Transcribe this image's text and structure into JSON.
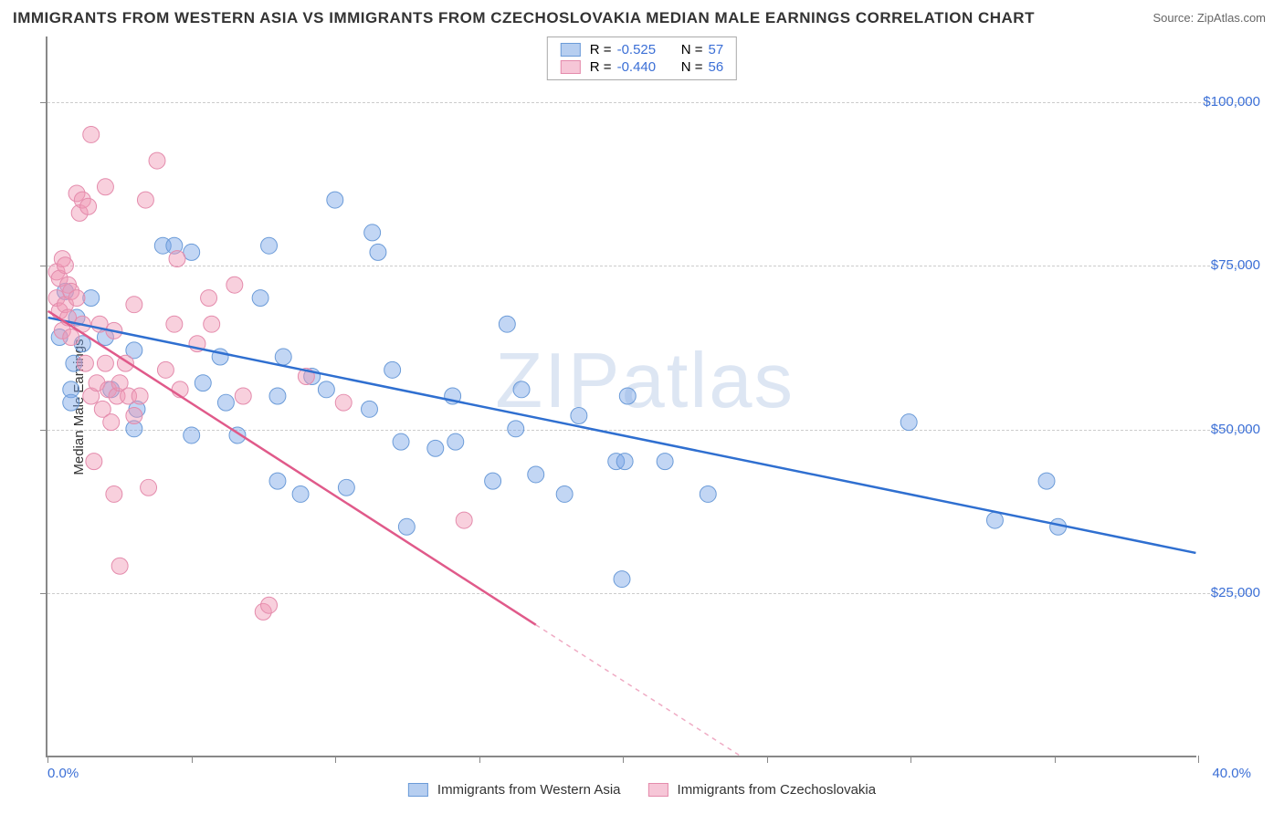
{
  "title": "IMMIGRANTS FROM WESTERN ASIA VS IMMIGRANTS FROM CZECHOSLOVAKIA MEDIAN MALE EARNINGS CORRELATION CHART",
  "source": "Source: ZipAtlas.com",
  "watermark": "ZIPatlas",
  "chart": {
    "type": "scatter",
    "ylabel": "Median Male Earnings",
    "xlim": [
      0,
      40
    ],
    "ylim": [
      0,
      110000
    ],
    "y_ticks": [
      25000,
      50000,
      75000,
      100000
    ],
    "y_tick_labels": [
      "$25,000",
      "$50,000",
      "$75,000",
      "$100,000"
    ],
    "x_ticks": [
      0,
      5,
      10,
      15,
      20,
      25,
      30,
      35,
      40
    ],
    "x_start_label": "0.0%",
    "x_end_label": "40.0%",
    "background_color": "#ffffff",
    "grid_color": "#cccccc",
    "axis_color": "#888888",
    "tick_label_color": "#3b6fd6",
    "series": [
      {
        "name": "Immigrants from Western Asia",
        "color_fill": "rgba(120,165,230,0.45)",
        "color_stroke": "#6b9bd8",
        "swatch_fill": "#b6cef0",
        "swatch_border": "#6b9bd8",
        "line_color": "#2f6fd0",
        "R": "-0.525",
        "N": "57",
        "trend": {
          "x1": 0,
          "y1": 67000,
          "x2": 40,
          "y2": 31000
        },
        "points": [
          [
            0.4,
            64000
          ],
          [
            0.6,
            71000
          ],
          [
            0.8,
            56000
          ],
          [
            0.8,
            54000
          ],
          [
            1.0,
            67000
          ],
          [
            1.2,
            63000
          ],
          [
            0.9,
            60000
          ],
          [
            1.5,
            70000
          ],
          [
            2.0,
            64000
          ],
          [
            2.2,
            56000
          ],
          [
            3.0,
            62000
          ],
          [
            3.1,
            53000
          ],
          [
            3.0,
            50000
          ],
          [
            4.0,
            78000
          ],
          [
            4.4,
            78000
          ],
          [
            5.0,
            77000
          ],
          [
            5.0,
            49000
          ],
          [
            5.4,
            57000
          ],
          [
            6.0,
            61000
          ],
          [
            6.2,
            54000
          ],
          [
            6.6,
            49000
          ],
          [
            7.4,
            70000
          ],
          [
            7.7,
            78000
          ],
          [
            8.0,
            42000
          ],
          [
            8.0,
            55000
          ],
          [
            8.2,
            61000
          ],
          [
            8.8,
            40000
          ],
          [
            9.2,
            58000
          ],
          [
            9.7,
            56000
          ],
          [
            10.0,
            85000
          ],
          [
            10.4,
            41000
          ],
          [
            11.2,
            53000
          ],
          [
            11.3,
            80000
          ],
          [
            11.5,
            77000
          ],
          [
            12.0,
            59000
          ],
          [
            12.3,
            48000
          ],
          [
            12.5,
            35000
          ],
          [
            13.5,
            47000
          ],
          [
            14.1,
            55000
          ],
          [
            14.2,
            48000
          ],
          [
            15.5,
            42000
          ],
          [
            16.0,
            66000
          ],
          [
            16.3,
            50000
          ],
          [
            16.5,
            56000
          ],
          [
            17.0,
            43000
          ],
          [
            18.0,
            40000
          ],
          [
            18.5,
            52000
          ],
          [
            19.8,
            45000
          ],
          [
            20.0,
            27000
          ],
          [
            20.1,
            45000
          ],
          [
            20.2,
            55000
          ],
          [
            21.5,
            45000
          ],
          [
            23.0,
            40000
          ],
          [
            30.0,
            51000
          ],
          [
            33.0,
            36000
          ],
          [
            34.8,
            42000
          ],
          [
            35.2,
            35000
          ]
        ]
      },
      {
        "name": "Immigrants from Czechoslovakia",
        "color_fill": "rgba(240,150,180,0.45)",
        "color_stroke": "#e48bac",
        "swatch_fill": "#f6c6d7",
        "swatch_border": "#e48bac",
        "line_color": "#e05a8a",
        "R": "-0.440",
        "N": "56",
        "trend": {
          "x1": 0,
          "y1": 68000,
          "x2": 17,
          "y2": 20000
        },
        "trend_extend": {
          "x1": 17,
          "y1": 20000,
          "x2": 25,
          "y2": -2500
        },
        "points": [
          [
            0.3,
            70000
          ],
          [
            0.3,
            74000
          ],
          [
            0.4,
            68000
          ],
          [
            0.4,
            73000
          ],
          [
            0.5,
            65000
          ],
          [
            0.5,
            76000
          ],
          [
            0.6,
            69000
          ],
          [
            0.6,
            75000
          ],
          [
            0.7,
            67000
          ],
          [
            0.7,
            72000
          ],
          [
            0.8,
            64000
          ],
          [
            0.8,
            71000
          ],
          [
            1.0,
            70000
          ],
          [
            1.0,
            86000
          ],
          [
            1.1,
            83000
          ],
          [
            1.2,
            66000
          ],
          [
            1.2,
            85000
          ],
          [
            1.3,
            60000
          ],
          [
            1.4,
            84000
          ],
          [
            1.5,
            95000
          ],
          [
            1.5,
            55000
          ],
          [
            1.6,
            45000
          ],
          [
            1.7,
            57000
          ],
          [
            1.8,
            66000
          ],
          [
            1.9,
            53000
          ],
          [
            2.0,
            60000
          ],
          [
            2.0,
            87000
          ],
          [
            2.1,
            56000
          ],
          [
            2.2,
            51000
          ],
          [
            2.3,
            65000
          ],
          [
            2.3,
            40000
          ],
          [
            2.4,
            55000
          ],
          [
            2.5,
            29000
          ],
          [
            2.5,
            57000
          ],
          [
            2.7,
            60000
          ],
          [
            2.8,
            55000
          ],
          [
            3.0,
            52000
          ],
          [
            3.0,
            69000
          ],
          [
            3.2,
            55000
          ],
          [
            3.4,
            85000
          ],
          [
            3.5,
            41000
          ],
          [
            3.8,
            91000
          ],
          [
            4.1,
            59000
          ],
          [
            4.4,
            66000
          ],
          [
            4.5,
            76000
          ],
          [
            4.6,
            56000
          ],
          [
            5.2,
            63000
          ],
          [
            5.6,
            70000
          ],
          [
            5.7,
            66000
          ],
          [
            6.5,
            72000
          ],
          [
            6.8,
            55000
          ],
          [
            7.5,
            22000
          ],
          [
            7.7,
            23000
          ],
          [
            9.0,
            58000
          ],
          [
            10.3,
            54000
          ],
          [
            14.5,
            36000
          ]
        ]
      }
    ]
  },
  "legend_top_labels": {
    "R": "R =",
    "N": "N ="
  },
  "legend_bottom": [
    {
      "label": "Immigrants from Western Asia",
      "series_index": 0
    },
    {
      "label": "Immigrants from Czechoslovakia",
      "series_index": 1
    }
  ]
}
